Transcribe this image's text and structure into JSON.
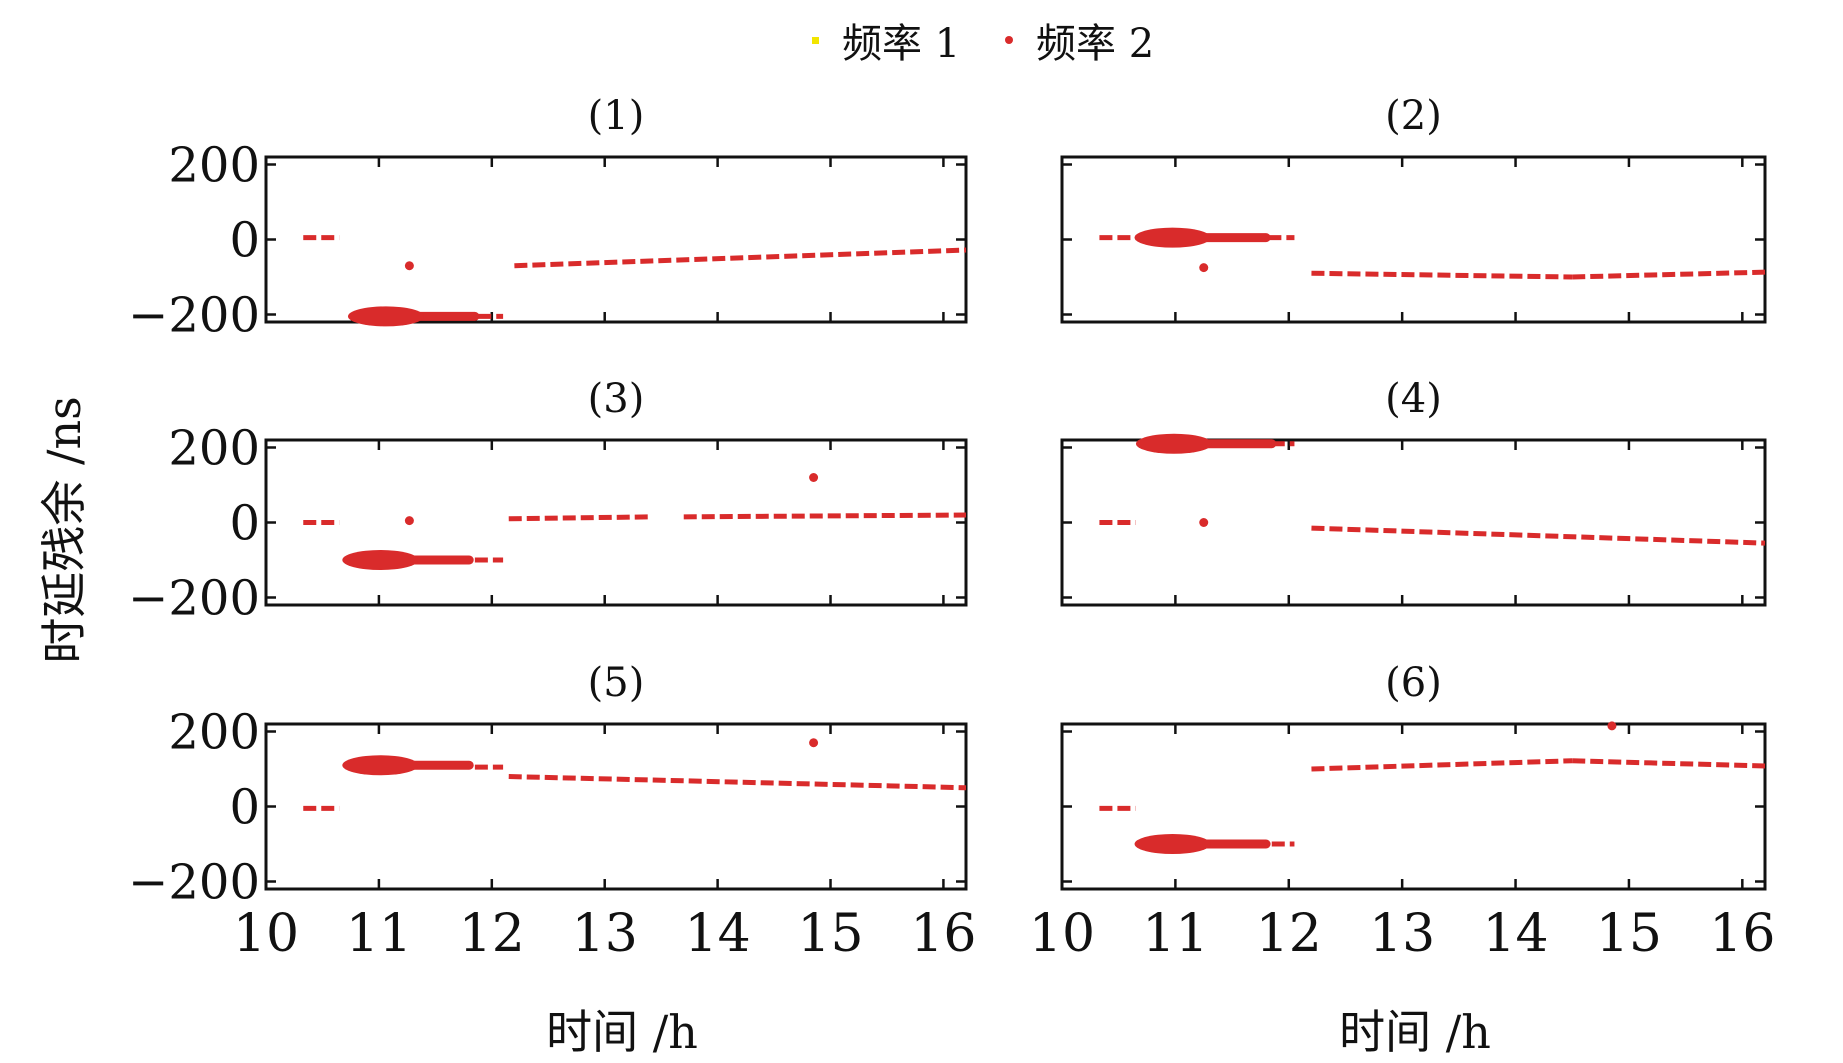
{
  "colors": {
    "freq1": "#f2e500",
    "freq2": "#d92b2b",
    "axis": "#111111"
  },
  "legend": {
    "items": [
      {
        "label": "频率 1",
        "color": "#f2e500"
      },
      {
        "label": "频率 2",
        "color": "#d92b2b"
      }
    ]
  },
  "ylabel": "时延残余 /ns",
  "xlabel": "时间 /h",
  "chart_data": [
    {
      "type": "scatter",
      "title": "(1)",
      "xlim": [
        10,
        16.2
      ],
      "ylim": [
        -220,
        220
      ],
      "xticks": [
        10,
        11,
        12,
        13,
        14,
        15,
        16
      ],
      "yticks": [
        200,
        0,
        -200
      ],
      "series": [
        {
          "name": "频率 1",
          "segments": []
        },
        {
          "name": "频率 2",
          "segments": [
            {
              "x": [
                10.33,
                10.65
              ],
              "y": [
                5,
                5
              ],
              "kind": "dashed"
            },
            {
              "x": [
                10.8,
                11.85
              ],
              "y": [
                -205,
                -205
              ],
              "kind": "dense"
            },
            {
              "x": [
                11.88,
                12.1
              ],
              "y": [
                -205,
                -205
              ],
              "kind": "dashed"
            },
            {
              "x": [
                12.2,
                16.2
              ],
              "y": [
                -70,
                -28
              ],
              "kind": "dashed"
            }
          ],
          "outliers": [
            {
              "x": 11.27,
              "y": -70
            }
          ]
        }
      ]
    },
    {
      "type": "scatter",
      "title": "(2)",
      "xlim": [
        10,
        16.2
      ],
      "ylim": [
        -220,
        220
      ],
      "xticks": [
        10,
        11,
        12,
        13,
        14,
        15,
        16
      ],
      "yticks": [
        200,
        0,
        -200
      ],
      "series": [
        {
          "name": "频率 1",
          "segments": []
        },
        {
          "name": "频率 2",
          "segments": [
            {
              "x": [
                10.33,
                10.7
              ],
              "y": [
                5,
                5
              ],
              "kind": "dashed"
            },
            {
              "x": [
                10.7,
                11.8
              ],
              "y": [
                5,
                5
              ],
              "kind": "dense"
            },
            {
              "x": [
                11.82,
                12.05
              ],
              "y": [
                5,
                5
              ],
              "kind": "dashed"
            },
            {
              "x": [
                12.2,
                14.5
              ],
              "y": [
                -90,
                -100
              ],
              "kind": "dashed"
            },
            {
              "x": [
                14.5,
                16.2
              ],
              "y": [
                -100,
                -87
              ],
              "kind": "dashed"
            }
          ],
          "outliers": [
            {
              "x": 11.25,
              "y": -75
            }
          ]
        }
      ]
    },
    {
      "type": "scatter",
      "title": "(3)",
      "xlim": [
        10,
        16.2
      ],
      "ylim": [
        -220,
        220
      ],
      "xticks": [
        10,
        11,
        12,
        13,
        14,
        15,
        16
      ],
      "yticks": [
        200,
        0,
        -200
      ],
      "series": [
        {
          "name": "频率 1",
          "segments": []
        },
        {
          "name": "频率 2",
          "segments": [
            {
              "x": [
                10.33,
                10.65
              ],
              "y": [
                0,
                0
              ],
              "kind": "dashed"
            },
            {
              "x": [
                10.75,
                11.8
              ],
              "y": [
                -100,
                -100
              ],
              "kind": "dense"
            },
            {
              "x": [
                11.85,
                12.1
              ],
              "y": [
                -100,
                -100
              ],
              "kind": "dashed"
            },
            {
              "x": [
                12.15,
                13.4
              ],
              "y": [
                10,
                15
              ],
              "kind": "dashed"
            },
            {
              "x": [
                13.7,
                16.2
              ],
              "y": [
                15,
                20
              ],
              "kind": "dashed"
            }
          ],
          "outliers": [
            {
              "x": 11.27,
              "y": 5
            },
            {
              "x": 14.85,
              "y": 120
            }
          ]
        }
      ]
    },
    {
      "type": "scatter",
      "title": "(4)",
      "xlim": [
        10,
        16.2
      ],
      "ylim": [
        -220,
        220
      ],
      "xticks": [
        10,
        11,
        12,
        13,
        14,
        15,
        16
      ],
      "yticks": [
        200,
        0,
        -200
      ],
      "series": [
        {
          "name": "频率 1",
          "segments": []
        },
        {
          "name": "频率 2",
          "segments": [
            {
              "x": [
                10.33,
                10.65
              ],
              "y": [
                0,
                0
              ],
              "kind": "dashed"
            },
            {
              "x": [
                10.7,
                11.85
              ],
              "y": [
                210,
                210
              ],
              "kind": "dense"
            },
            {
              "x": [
                11.85,
                12.05
              ],
              "y": [
                210,
                210
              ],
              "kind": "dashed"
            },
            {
              "x": [
                12.2,
                16.2
              ],
              "y": [
                -15,
                -55
              ],
              "kind": "dashed"
            }
          ],
          "outliers": [
            {
              "x": 11.25,
              "y": 0
            }
          ]
        }
      ]
    },
    {
      "type": "scatter",
      "title": "(5)",
      "xlim": [
        10,
        16.2
      ],
      "ylim": [
        -220,
        220
      ],
      "xticks": [
        10,
        11,
        12,
        13,
        14,
        15,
        16
      ],
      "yticks": [
        200,
        0,
        -200
      ],
      "series": [
        {
          "name": "频率 1",
          "segments": []
        },
        {
          "name": "频率 2",
          "segments": [
            {
              "x": [
                10.33,
                10.65
              ],
              "y": [
                -5,
                -5
              ],
              "kind": "dashed"
            },
            {
              "x": [
                10.75,
                11.8
              ],
              "y": [
                110,
                110
              ],
              "kind": "dense"
            },
            {
              "x": [
                11.85,
                12.1
              ],
              "y": [
                105,
                105
              ],
              "kind": "dashed"
            },
            {
              "x": [
                12.15,
                16.2
              ],
              "y": [
                80,
                50
              ],
              "kind": "dashed"
            }
          ],
          "outliers": [
            {
              "x": 14.85,
              "y": 170
            }
          ]
        }
      ]
    },
    {
      "type": "scatter",
      "title": "(6)",
      "xlim": [
        10,
        16.2
      ],
      "ylim": [
        -220,
        220
      ],
      "xticks": [
        10,
        11,
        12,
        13,
        14,
        15,
        16
      ],
      "yticks": [
        200,
        0,
        -200
      ],
      "series": [
        {
          "name": "频率 1",
          "segments": []
        },
        {
          "name": "频率 2",
          "segments": [
            {
              "x": [
                10.33,
                10.65
              ],
              "y": [
                -5,
                -5
              ],
              "kind": "dashed"
            },
            {
              "x": [
                10.7,
                11.8
              ],
              "y": [
                -100,
                -100
              ],
              "kind": "dense"
            },
            {
              "x": [
                11.85,
                12.05
              ],
              "y": [
                -100,
                -100
              ],
              "kind": "dashed"
            },
            {
              "x": [
                12.2,
                14.5
              ],
              "y": [
                100,
                122
              ],
              "kind": "dashed"
            },
            {
              "x": [
                14.5,
                16.2
              ],
              "y": [
                122,
                108
              ],
              "kind": "dashed"
            }
          ],
          "outliers": [
            {
              "x": 14.85,
              "y": 215
            }
          ]
        }
      ]
    }
  ]
}
